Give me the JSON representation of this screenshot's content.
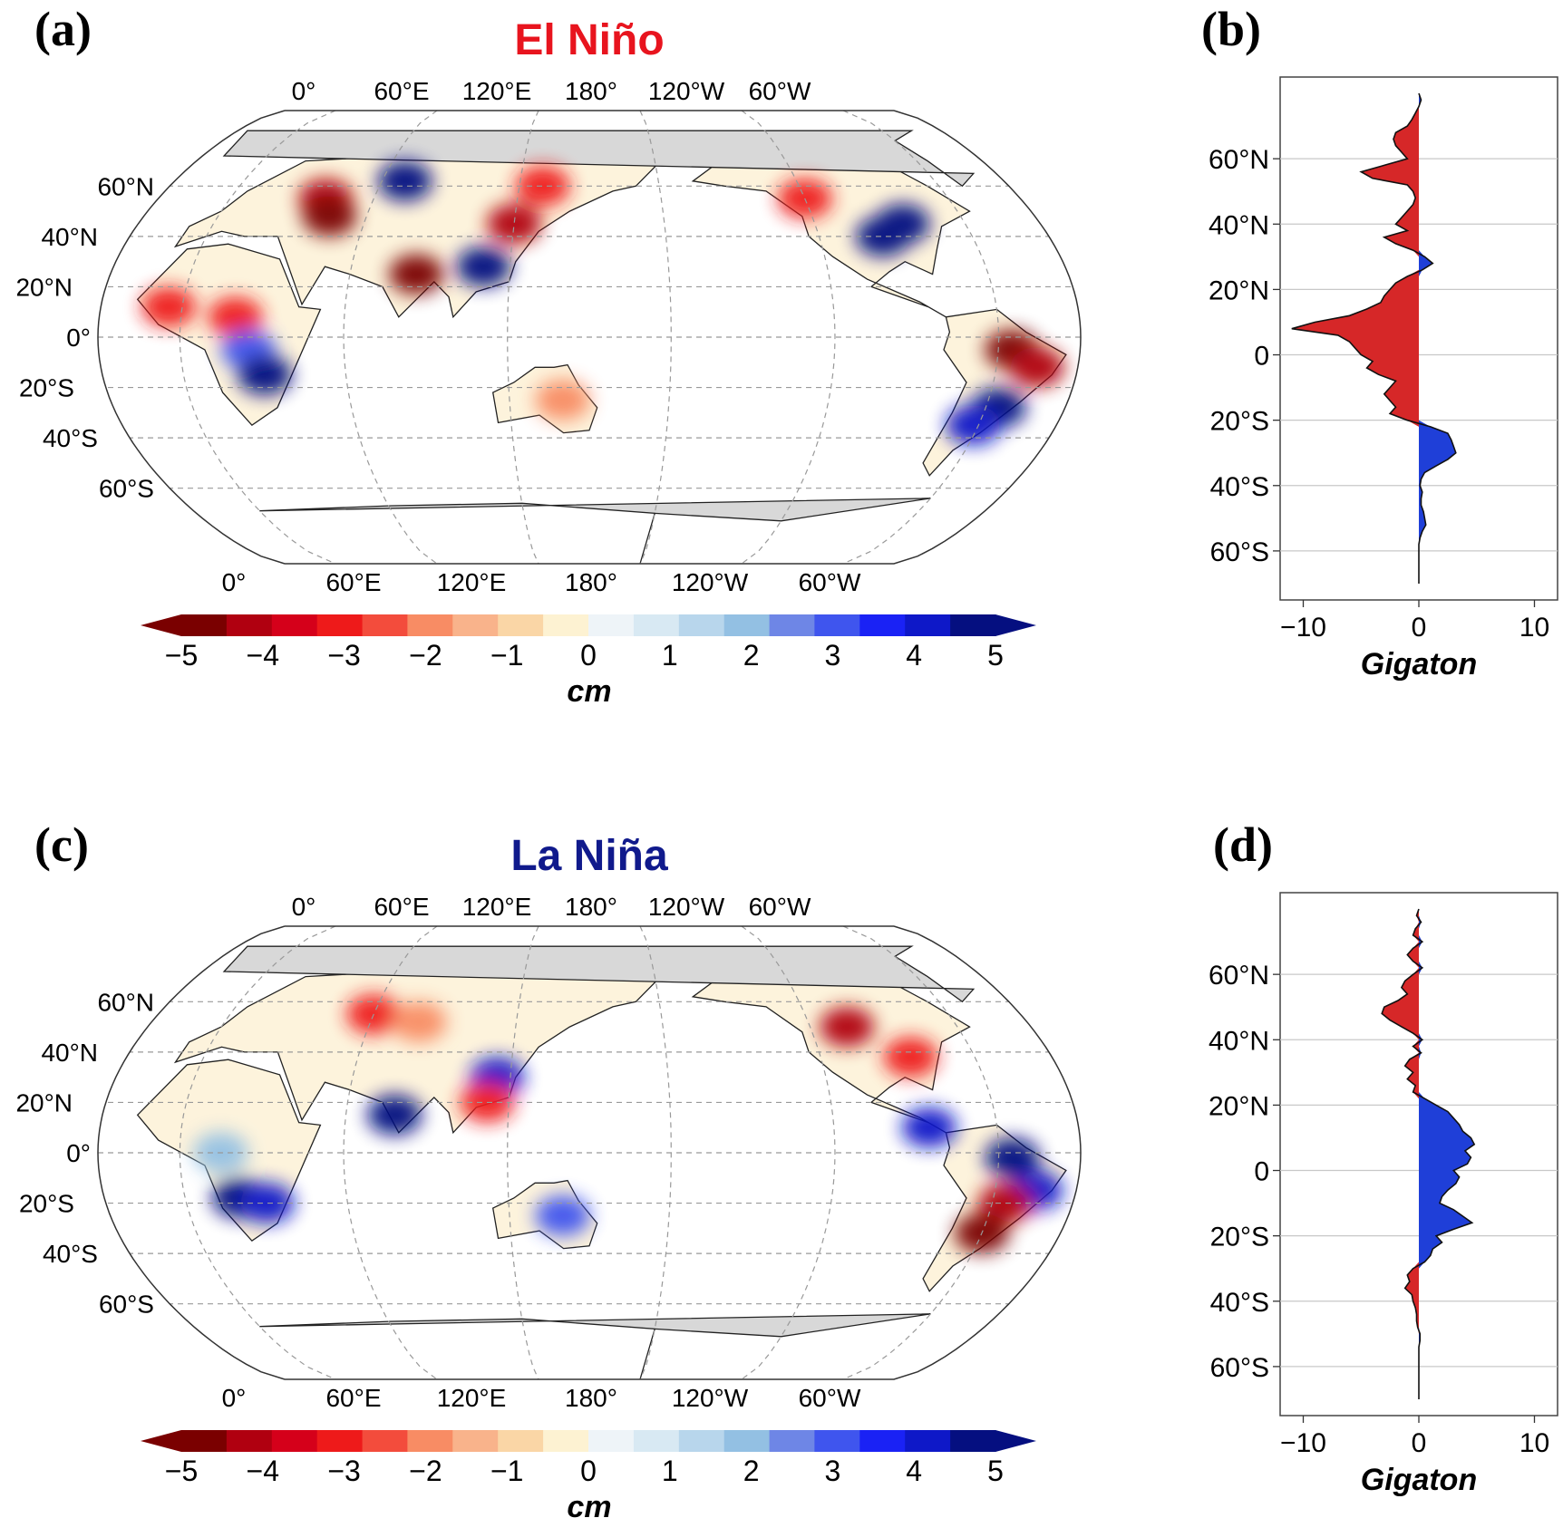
{
  "panels": [
    {
      "label": "(a)",
      "title": "El Niño",
      "title_color": "#e8141e",
      "top_lon_labels": [
        "0°",
        "60°E",
        "120°E",
        "180°",
        "120°W",
        "60°W"
      ],
      "bottom_lon_labels": [
        "0°",
        "60°E",
        "120°E",
        "180°",
        "120°W",
        "60°W"
      ],
      "lat_labels": [
        "60°N",
        "40°N",
        "20°N",
        "0°",
        "20°S",
        "40°S",
        "60°S"
      ],
      "blobs": [
        {
          "lon": -5,
          "lat": 12,
          "v": -3
        },
        {
          "lon": 20,
          "lat": 8,
          "v": -3
        },
        {
          "lon": 25,
          "lat": -5,
          "v": 3
        },
        {
          "lon": 30,
          "lat": -15,
          "v": 5
        },
        {
          "lon": 40,
          "lat": 55,
          "v": -4
        },
        {
          "lon": 45,
          "lat": 48,
          "v": -5
        },
        {
          "lon": 70,
          "lat": 62,
          "v": 5
        },
        {
          "lon": 85,
          "lat": 25,
          "v": -5
        },
        {
          "lon": 110,
          "lat": 28,
          "v": 5
        },
        {
          "lon": 120,
          "lat": 45,
          "v": -4
        },
        {
          "lon": 130,
          "lat": 60,
          "v": -3
        },
        {
          "lon": 140,
          "lat": -25,
          "v": -2
        },
        {
          "lon": -120,
          "lat": 55,
          "v": -3
        },
        {
          "lon": -95,
          "lat": 40,
          "v": 5
        },
        {
          "lon": -85,
          "lat": 45,
          "v": 5
        },
        {
          "lon": -55,
          "lat": -5,
          "v": -5
        },
        {
          "lon": -45,
          "lat": -12,
          "v": -4
        },
        {
          "lon": -55,
          "lat": -28,
          "v": 5
        },
        {
          "lon": -62,
          "lat": -35,
          "v": 4
        }
      ],
      "colorbar": {
        "ticks": [
          "−5",
          "−4",
          "−3",
          "−2",
          "−1",
          "0",
          "1",
          "2",
          "3",
          "4",
          "5"
        ],
        "label": "cm"
      }
    },
    {
      "label": "(c)",
      "title": "La Niña",
      "title_color": "#101a8c",
      "top_lon_labels": [
        "0°",
        "60°E",
        "120°E",
        "180°",
        "120°W",
        "60°W"
      ],
      "bottom_lon_labels": [
        "0°",
        "60°E",
        "120°E",
        "180°",
        "120°W",
        "60°W"
      ],
      "lat_labels": [
        "60°N",
        "40°N",
        "20°N",
        "0°",
        "20°S",
        "40°S",
        "60°S"
      ],
      "blobs": [
        {
          "lon": 20,
          "lat": -18,
          "v": 5
        },
        {
          "lon": 30,
          "lat": -20,
          "v": 4
        },
        {
          "lon": 15,
          "lat": 0,
          "v": 2
        },
        {
          "lon": 60,
          "lat": 55,
          "v": -3
        },
        {
          "lon": 80,
          "lat": 52,
          "v": -2
        },
        {
          "lon": 78,
          "lat": 15,
          "v": 5
        },
        {
          "lon": 115,
          "lat": 30,
          "v": 4
        },
        {
          "lon": 112,
          "lat": 20,
          "v": -3
        },
        {
          "lon": 140,
          "lat": -25,
          "v": 3
        },
        {
          "lon": -105,
          "lat": 50,
          "v": -4
        },
        {
          "lon": -85,
          "lat": 38,
          "v": -3
        },
        {
          "lon": -85,
          "lat": 10,
          "v": 4
        },
        {
          "lon": -55,
          "lat": -2,
          "v": 5
        },
        {
          "lon": -45,
          "lat": -15,
          "v": 4
        },
        {
          "lon": -55,
          "lat": -20,
          "v": -4
        },
        {
          "lon": -60,
          "lat": -32,
          "v": -5
        }
      ],
      "colorbar": {
        "ticks": [
          "−5",
          "−4",
          "−3",
          "−2",
          "−1",
          "0",
          "1",
          "2",
          "3",
          "4",
          "5"
        ],
        "label": "cm"
      }
    }
  ],
  "colormap": [
    "#7a0000",
    "#b00010",
    "#d5001a",
    "#ee1a1a",
    "#f34c3c",
    "#f88c64",
    "#f9b38b",
    "#fad6a6",
    "#fdf2d2",
    "#eef4f8",
    "#d8e9f3",
    "#b8d6ec",
    "#93c0e3",
    "#6e86e6",
    "#3f55ee",
    "#1a22f5",
    "#0e18c8",
    "#050f80"
  ],
  "chart_data": [
    {
      "type": "area",
      "panel_label": "(b)",
      "xlabel": "Gigaton",
      "xlim": [
        -12,
        12
      ],
      "xticks": [
        "−10",
        "0",
        "10"
      ],
      "ylim": [
        -75,
        85
      ],
      "yticks": [
        "60°N",
        "40°N",
        "20°N",
        "0",
        "20°S",
        "40°S",
        "60°S"
      ],
      "grid": true,
      "negative_color": "#d62728",
      "positive_color": "#1f3fd8",
      "lat": [
        80,
        78,
        76,
        74,
        72,
        70,
        68,
        66,
        64,
        62,
        60,
        58,
        56,
        54,
        52,
        50,
        48,
        46,
        44,
        42,
        40,
        38,
        36,
        34,
        32,
        30,
        28,
        26,
        24,
        22,
        20,
        18,
        16,
        14,
        12,
        10,
        8,
        6,
        4,
        2,
        0,
        -2,
        -4,
        -6,
        -8,
        -10,
        -12,
        -14,
        -16,
        -18,
        -20,
        -22,
        -24,
        -26,
        -28,
        -30,
        -32,
        -34,
        -36,
        -38,
        -40,
        -42,
        -44,
        -46,
        -48,
        -50,
        -52,
        -54,
        -56,
        -58,
        -60,
        -62,
        -64,
        -66,
        -68,
        -70
      ],
      "value": [
        0,
        0.2,
        0,
        -0.3,
        -0.6,
        -1.0,
        -2.0,
        -2.2,
        -2.0,
        -1.5,
        -1.0,
        -3.0,
        -5.0,
        -4.0,
        -1.0,
        -0.5,
        -0.3,
        -0.5,
        -1.0,
        -1.5,
        -2.0,
        -1.0,
        -3.0,
        -2.0,
        -0.5,
        0.5,
        1.2,
        0.3,
        -1.0,
        -2.0,
        -2.5,
        -3.0,
        -3.3,
        -4.5,
        -6.0,
        -9.0,
        -11.0,
        -7.0,
        -6.0,
        -5.5,
        -5.0,
        -4.0,
        -4.5,
        -3.5,
        -2.0,
        -2.5,
        -3.0,
        -2.5,
        -2.0,
        -2.5,
        -1.0,
        1.0,
        2.5,
        2.8,
        3.0,
        3.2,
        2.5,
        1.5,
        0.5,
        0.2,
        0.1,
        0.3,
        0.2,
        0.2,
        0.4,
        0.5,
        0.6,
        0.3,
        0.1,
        0,
        0,
        0,
        0,
        0,
        0,
        0
      ]
    },
    {
      "type": "area",
      "panel_label": "(d)",
      "xlabel": "Gigaton",
      "xlim": [
        -12,
        12
      ],
      "xticks": [
        "−10",
        "0",
        "10"
      ],
      "ylim": [
        -75,
        85
      ],
      "yticks": [
        "60°N",
        "40°N",
        "20°N",
        "0",
        "20°S",
        "40°S",
        "60°S"
      ],
      "grid": true,
      "negative_color": "#d62728",
      "positive_color": "#1f3fd8",
      "lat": [
        80,
        78,
        76,
        74,
        72,
        70,
        68,
        66,
        64,
        62,
        60,
        58,
        56,
        54,
        52,
        50,
        48,
        46,
        44,
        42,
        40,
        38,
        36,
        34,
        32,
        30,
        28,
        26,
        24,
        22,
        20,
        18,
        16,
        14,
        12,
        10,
        8,
        6,
        4,
        2,
        0,
        -2,
        -4,
        -6,
        -8,
        -10,
        -12,
        -14,
        -16,
        -18,
        -20,
        -22,
        -24,
        -26,
        -28,
        -30,
        -32,
        -34,
        -36,
        -38,
        -40,
        -42,
        -44,
        -46,
        -48,
        -50,
        -52,
        -54,
        -56,
        -58,
        -60,
        -62,
        -64,
        -66,
        -68,
        -70
      ],
      "value": [
        0,
        -0.2,
        0.2,
        -0.3,
        -0.5,
        0.3,
        -0.5,
        -1.0,
        -0.5,
        0.3,
        -0.5,
        -1.2,
        -1.5,
        -1.0,
        -1.8,
        -3.0,
        -3.2,
        -2.5,
        -1.5,
        -0.5,
        0.3,
        -0.5,
        0.2,
        -0.8,
        -1.2,
        -0.5,
        -1.0,
        -0.3,
        -0.5,
        0.5,
        1.5,
        2.5,
        3.0,
        3.5,
        3.8,
        4.5,
        4.8,
        4.0,
        4.5,
        4.2,
        3.0,
        3.5,
        3.2,
        2.5,
        2.0,
        1.8,
        3.0,
        3.8,
        4.6,
        3.0,
        1.5,
        2.0,
        1.2,
        1.0,
        0.5,
        -0.5,
        -1.0,
        -0.8,
        -1.2,
        -0.6,
        -0.5,
        -0.3,
        -0.2,
        -0.2,
        -0.1,
        0.1,
        0.1,
        0,
        0,
        0,
        0,
        0,
        0,
        0,
        0,
        0
      ]
    }
  ]
}
